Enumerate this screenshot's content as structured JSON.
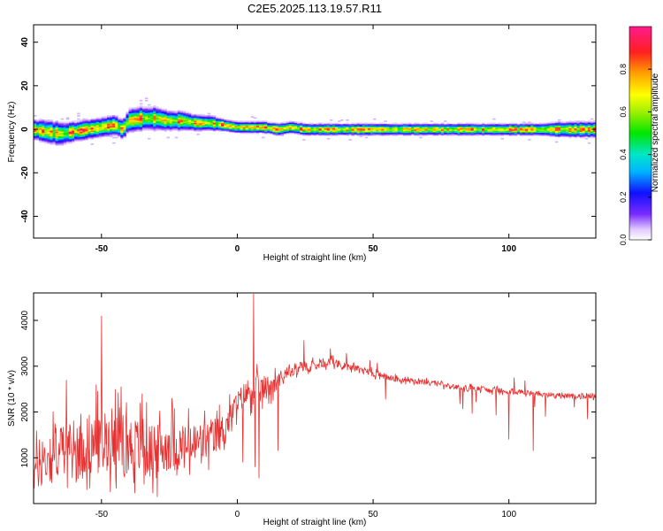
{
  "title": "C2E5.2025.113.19.57.R11",
  "chart_data": [
    {
      "type": "heatmap",
      "xlabel": "Height of straight line (km)",
      "ylabel": "Frequency (Hz)",
      "xlim": [
        -75,
        132
      ],
      "ylim": [
        -50,
        48
      ],
      "xticks": [
        -50,
        0,
        50,
        100
      ],
      "yticks": [
        -40,
        -20,
        0,
        20,
        40
      ],
      "ridge": {
        "x": [
          -75,
          -70,
          -65,
          -60,
          -55,
          -50,
          -45,
          -42,
          -40,
          -35,
          -30,
          -25,
          -20,
          -15,
          -10,
          -5,
          0,
          5,
          10,
          15,
          20,
          25,
          30,
          40,
          60,
          80,
          100,
          110,
          120,
          132
        ],
        "y": [
          0,
          -1,
          -2,
          -1,
          0,
          1,
          2,
          0,
          4,
          5,
          5,
          4,
          4,
          3,
          3,
          2,
          1,
          1,
          1,
          0,
          1,
          0,
          0,
          0,
          0,
          0,
          0,
          0,
          0,
          0
        ],
        "width": [
          5,
          6,
          6,
          5,
          5,
          5,
          5,
          5,
          6,
          6,
          6,
          5,
          5,
          4,
          4,
          3,
          3,
          3,
          3,
          3,
          3,
          3,
          3,
          3,
          3,
          3,
          3,
          3,
          4,
          4
        ]
      },
      "colorbar": {
        "label": "Normalized spectral amplitude",
        "range": [
          0,
          1
        ],
        "ticks": [
          "0.0",
          "0.2",
          "0.4",
          "0.6",
          "0.8"
        ],
        "tick_values": [
          0,
          0.2,
          0.4,
          0.6,
          0.8
        ]
      }
    },
    {
      "type": "line",
      "xlabel": "Height of straight line (km)",
      "ylabel": "SNR (10 * v/v)",
      "xlim": [
        -75,
        132
      ],
      "ylim": [
        0,
        4600
      ],
      "xticks": [
        -50,
        0,
        50,
        100
      ],
      "yticks": [
        1000,
        2000,
        3000,
        4000
      ],
      "color": "#e83030",
      "envelope": {
        "x": [
          -75,
          -70,
          -65,
          -60,
          -55,
          -50,
          -47,
          -45,
          -40,
          -35,
          -30,
          -25,
          -20,
          -15,
          -10,
          -5,
          0,
          5,
          10,
          15,
          20,
          25,
          30,
          35,
          40,
          50,
          60,
          70,
          80,
          90,
          100,
          110,
          120,
          132
        ],
        "mean": [
          700,
          1000,
          1200,
          1100,
          1300,
          1300,
          1400,
          1500,
          1300,
          1200,
          1100,
          1300,
          1200,
          1300,
          1400,
          1600,
          2200,
          2500,
          2500,
          2700,
          2900,
          3000,
          3050,
          3100,
          3000,
          2850,
          2700,
          2650,
          2550,
          2500,
          2450,
          2400,
          2350,
          2350
        ],
        "amp": [
          650,
          800,
          800,
          800,
          900,
          900,
          900,
          900,
          900,
          850,
          800,
          750,
          700,
          650,
          600,
          500,
          350,
          450,
          400,
          250,
          200,
          150,
          130,
          120,
          110,
          100,
          90,
          85,
          80,
          80,
          80,
          75,
          75,
          75
        ]
      },
      "spikes": [
        [
          -50,
          4100
        ],
        [
          -63,
          2700
        ],
        [
          -45,
          2500
        ],
        [
          6,
          4580
        ],
        [
          6.5,
          800
        ],
        [
          8,
          550
        ],
        [
          2,
          900
        ],
        [
          -24,
          2300
        ],
        [
          109,
          1150
        ],
        [
          100,
          1400
        ],
        [
          -52,
          2600
        ],
        [
          -35,
          2400
        ]
      ]
    }
  ]
}
